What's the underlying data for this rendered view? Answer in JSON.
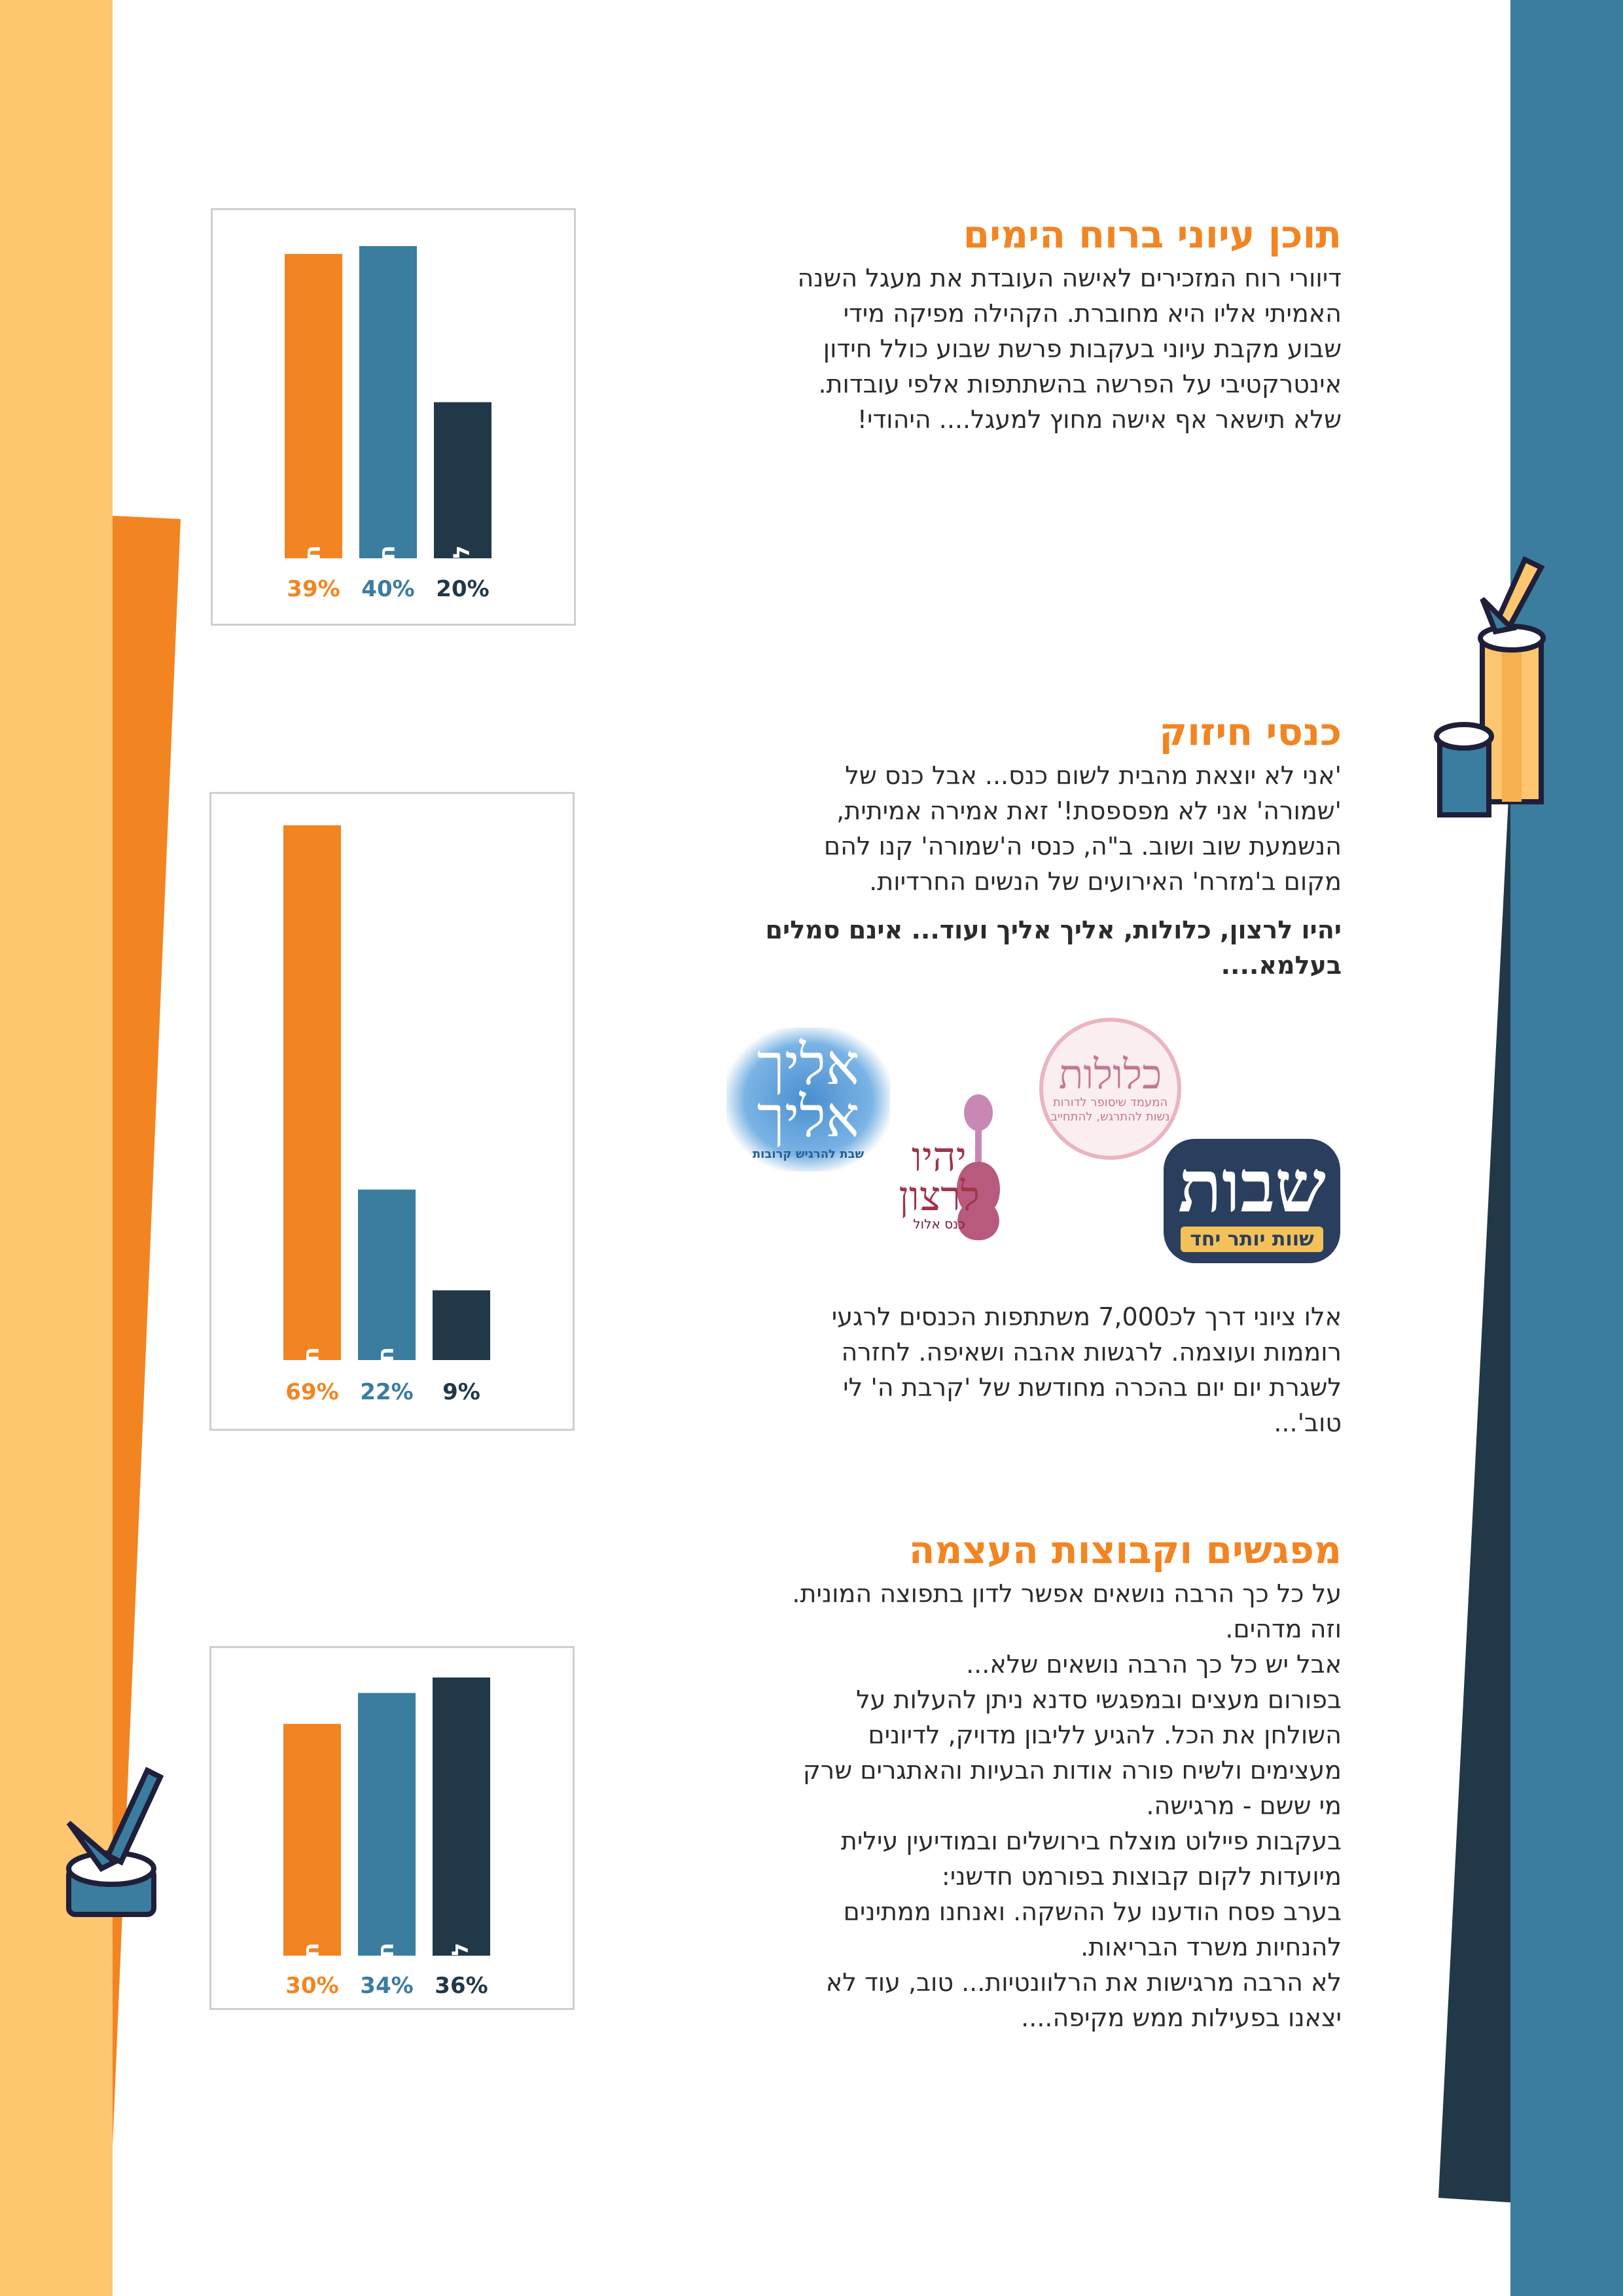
{
  "colors": {
    "orange": "#f28522",
    "teal": "#3a7d9e",
    "navy": "#203848",
    "light_orange": "#fec66f",
    "page_bg": "#ffffff"
  },
  "sections": [
    {
      "title": "תוכן עיוני ברוח הימים",
      "body": "דיוורי רוח המזכירים לאישה העובדת את מעגל השנה\nהאמיתי אליו היא מחוברת. הקהילה מפיקה מידי\nשבוע מקבת עיוני בעקבות פרשת שבוע כולל חידון\nאינטרקטיבי על הפרשה בהשתתפות אלפי עובדות.\nשלא תישאר אף אישה מחוץ למעגל.... היהודי!"
    },
    {
      "title": "כנסי חיזוק",
      "body": "'אני לא יוצאת מהבית לשום כנס... אבל כנס של\n'שמורה' אני לא מפספסת!' זאת אמירה אמיתית,\nהנשמעת שוב ושוב. ב\"ה, כנסי ה'שמורה' קנו להם\nמקום ב'מזרח' האירועים של הנשים החרדיות.",
      "bold": "יהיו לרצון, כלולות, אליך אליך ועוד... אינם סמלים\nבעלמא....",
      "after": "אלו ציוני דרך לכ7,000 משתתפות הכנסים לרגעי\nרוממות ועוצמה. לרגשות אהבה ושאיפה. לחזרה\nלשגרת יום יום בהכרה מחודשת של 'קרבת ה' לי\nטוב'..."
    },
    {
      "title": "מפגשים וקבוצות העצמה",
      "body": "על כל כך הרבה נושאים אפשר לדון בתפוצה המונית.\nוזה מדהים.\nאבל יש כל כך הרבה נושאים שלא...\nבפורום מעצים ובמפגשי סדנא ניתן להעלות על\nהשולחן את הכל. להגיע לליבון מדויק, לדיונים\nמעצימים ולשיח פורה אודות הבעיות והאתגרים שרק\nמי ששם - מרגישה.\nבעקבות פיילוט מוצלח בירושלים ובמודיעין עילית\nמיועדות לקום קבוצות בפורמט חדשני:\nבערב פסח הודענו על ההשקה. ואנחנו ממתינים\nלהנחיות משרד הבריאות.\nלא הרבה מרגישות את הרלוונטיות... טוב, עוד לא\nיצאנו בפעילות ממש מקיפה...."
    }
  ],
  "logos": {
    "shvut": {
      "big": "שבות",
      "small": "שוות יותר יחד"
    },
    "klulot": {
      "big": "כלולות",
      "small": "המעמד שיסופר לדורות\nנשות להתרגש, להתחייב"
    },
    "elul": {
      "big": "אליך\nאליך",
      "small": "שבת להרגיש קרובות"
    },
    "kinus": {
      "big": "יהיו\nלרצון",
      "small": "כנס אלול"
    }
  },
  "chart_data": [
    {
      "type": "bar",
      "categories": [
        "חשוב מאוד",
        "חשוב",
        "לא משמעותי"
      ],
      "values": [
        39,
        40,
        20
      ],
      "value_labels": [
        "39%",
        "40%",
        "20%"
      ],
      "colors": [
        "#f28522",
        "#3a7d9e",
        "#203848"
      ],
      "ylim": [
        0,
        40
      ],
      "grid": false,
      "title": "",
      "xlabel": "",
      "ylabel": ""
    },
    {
      "type": "bar",
      "categories": [
        "חשוב מאוד",
        "חשוב",
        ""
      ],
      "values": [
        69,
        22,
        9
      ],
      "value_labels": [
        "69%",
        "22%",
        "9%"
      ],
      "colors": [
        "#f28522",
        "#3a7d9e",
        "#203848"
      ],
      "ylim": [
        0,
        69
      ],
      "grid": false,
      "title": "",
      "xlabel": "",
      "ylabel": ""
    },
    {
      "type": "bar",
      "categories": [
        "חשוב מאוד",
        "חשוב",
        "לא משמעותי"
      ],
      "values": [
        30,
        34,
        36
      ],
      "value_labels": [
        "30%",
        "34%",
        "36%"
      ],
      "colors": [
        "#f28522",
        "#3a7d9e",
        "#203848"
      ],
      "ylim": [
        0,
        36
      ],
      "grid": false,
      "title": "",
      "xlabel": "",
      "ylabel": ""
    }
  ]
}
